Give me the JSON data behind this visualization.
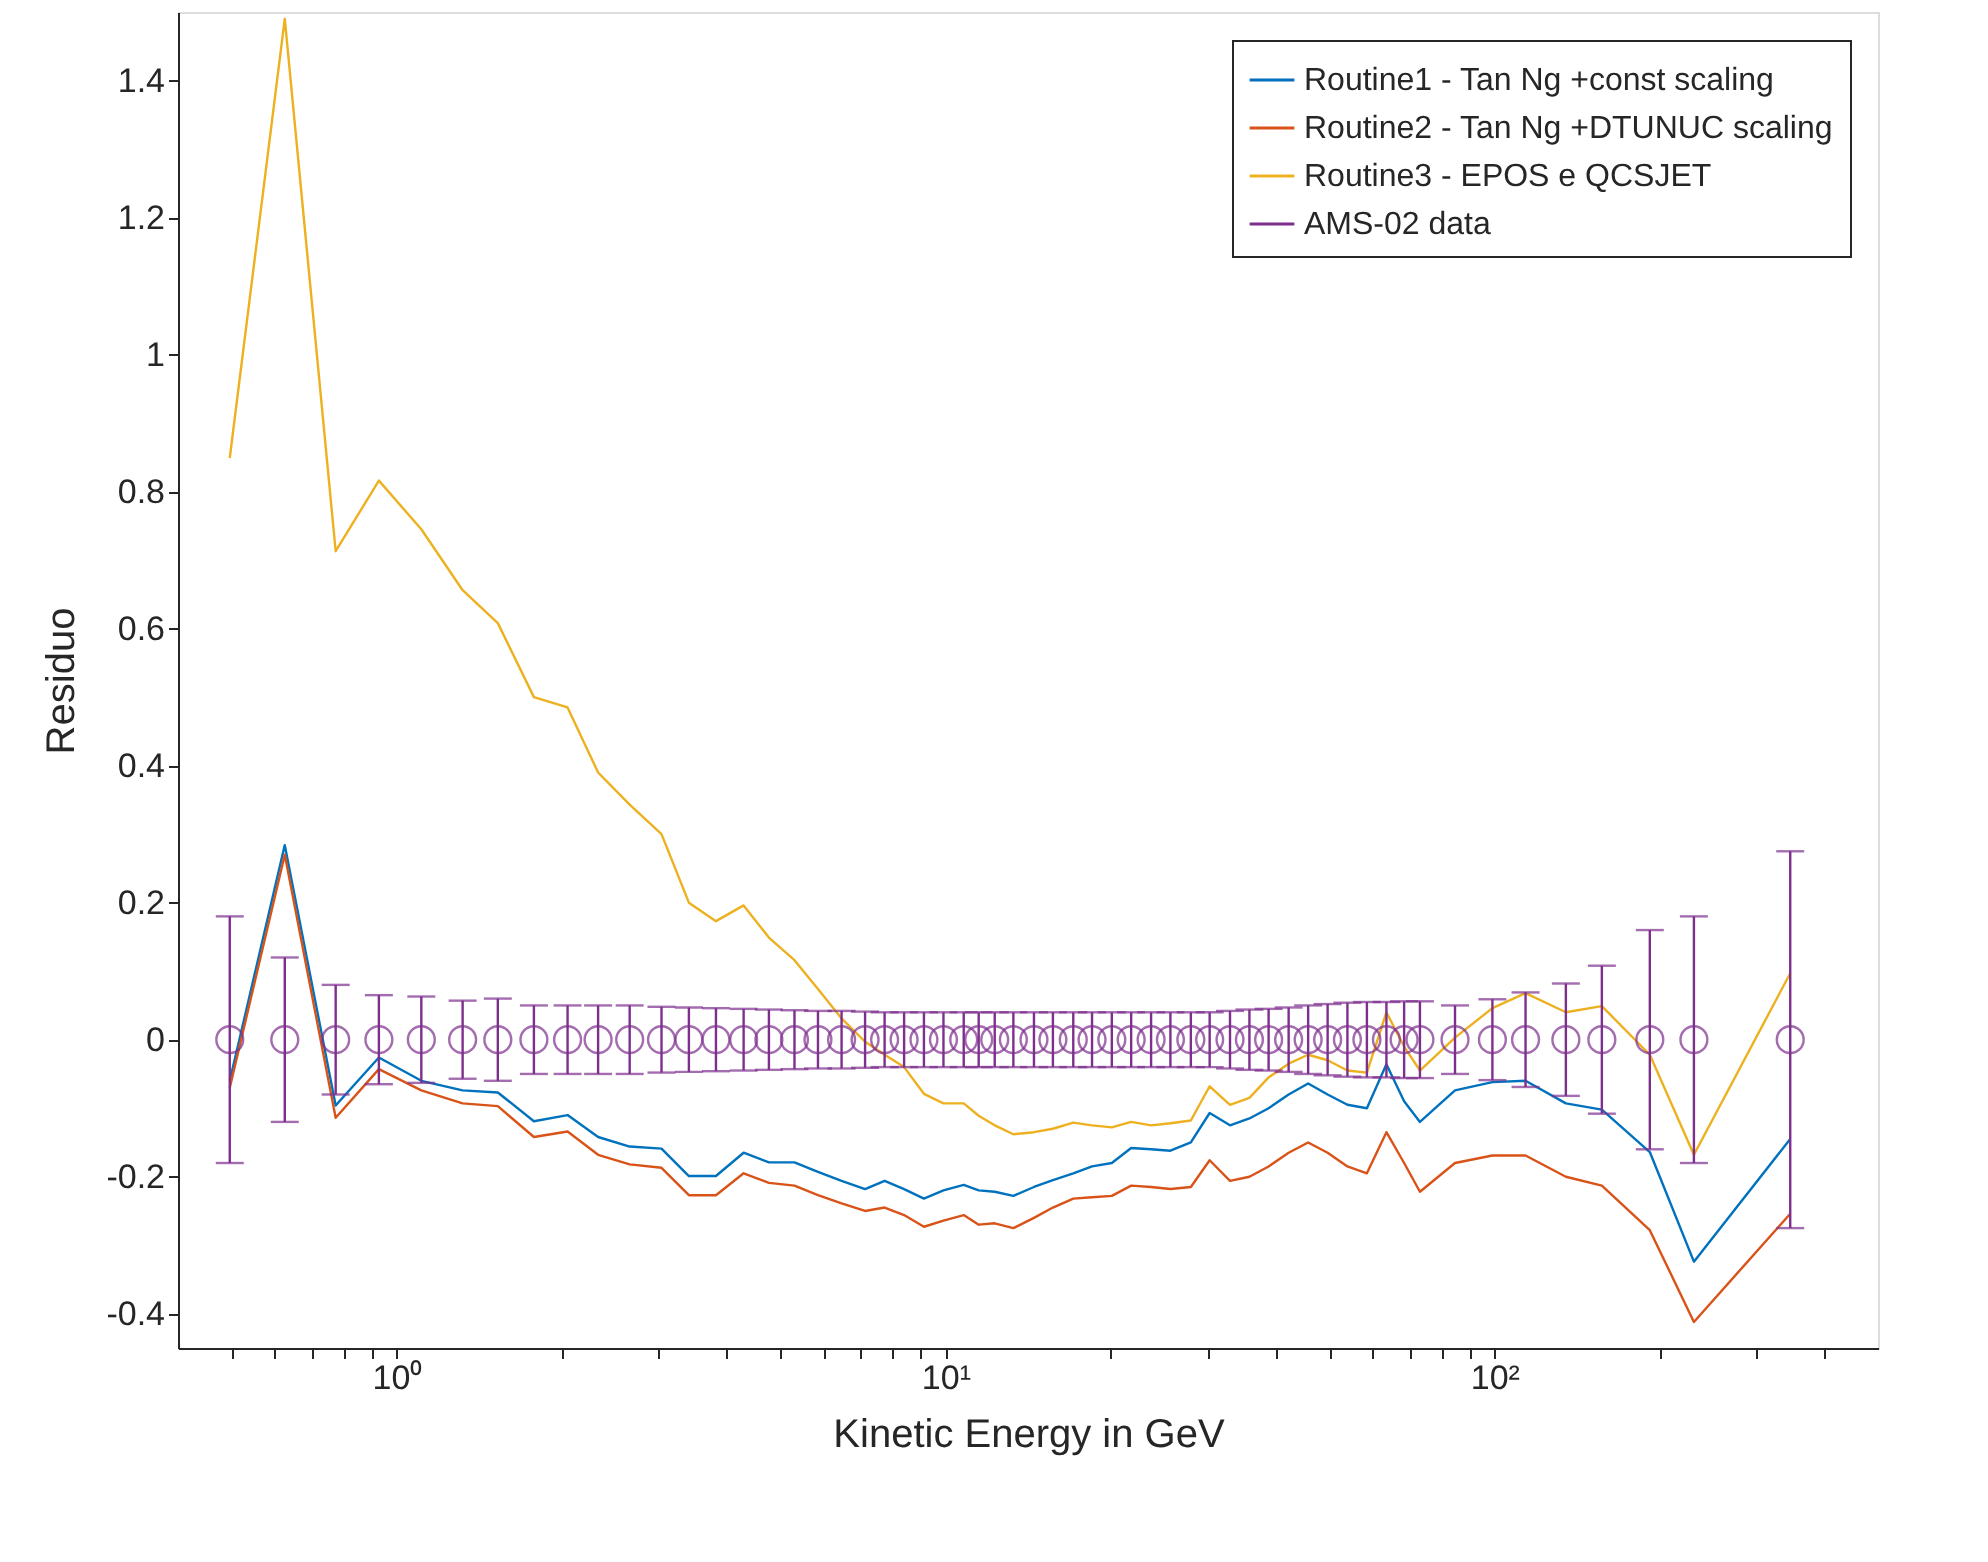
{
  "chart_data": {
    "type": "line",
    "xlabel": "Kinetic Energy in GeV",
    "ylabel": "Residuo",
    "log": "x",
    "grid": false,
    "legend": "top right",
    "xlim": [
      0.4,
      500
    ],
    "ylim": [
      -0.45,
      1.5
    ],
    "xticks": [
      {
        "value": 0.5,
        "label": null
      },
      {
        "value": 0.6,
        "label": null
      },
      {
        "value": 0.7,
        "label": null
      },
      {
        "value": 0.8,
        "label": null
      },
      {
        "value": 0.9,
        "label": null
      },
      {
        "value": 1,
        "label": "10⁰"
      },
      {
        "value": 2,
        "label": null
      },
      {
        "value": 3,
        "label": null
      },
      {
        "value": 4,
        "label": null
      },
      {
        "value": 5,
        "label": null
      },
      {
        "value": 6,
        "label": null
      },
      {
        "value": 7,
        "label": null
      },
      {
        "value": 8,
        "label": null
      },
      {
        "value": 9,
        "label": null
      },
      {
        "value": 10,
        "label": "10¹"
      },
      {
        "value": 20,
        "label": null
      },
      {
        "value": 30,
        "label": null
      },
      {
        "value": 40,
        "label": null
      },
      {
        "value": 50,
        "label": null
      },
      {
        "value": 60,
        "label": null
      },
      {
        "value": 70,
        "label": null
      },
      {
        "value": 80,
        "label": null
      },
      {
        "value": 90,
        "label": null
      },
      {
        "value": 100,
        "label": "10²"
      },
      {
        "value": 200,
        "label": null
      },
      {
        "value": 300,
        "label": null
      },
      {
        "value": 400,
        "label": null
      }
    ],
    "yticks": [
      -0.4,
      -0.2,
      0,
      0.2,
      0.4,
      0.6,
      0.8,
      1,
      1.2,
      1.4
    ],
    "x": [
      0.497,
      0.626,
      0.775,
      0.929,
      1.11,
      1.32,
      1.53,
      1.78,
      2.05,
      2.33,
      2.66,
      3.04,
      3.41,
      3.82,
      4.29,
      4.77,
      5.31,
      5.86,
      6.47,
      7.14,
      7.75,
      8.41,
      9.14,
      9.92,
      10.8,
      11.5,
      12.3,
      13.3,
      14.5,
      15.7,
      17.1,
      18.5,
      20.1,
      21.8,
      23.7,
      25.7,
      28.0,
      30.3,
      33.0,
      35.8,
      38.8,
      42.2,
      45.8,
      49.7,
      54.0,
      58.6,
      63.6,
      68.5,
      73.2,
      84.8,
      99.2,
      114,
      135,
      157,
      192,
      231,
      346
    ],
    "series": [
      {
        "name": "Routine1 - Tan Ng +const scaling",
        "color": "#0072bd",
        "values": [
          -0.06,
          0.284,
          -0.096,
          -0.026,
          -0.06,
          -0.074,
          -0.077,
          -0.119,
          -0.11,
          -0.142,
          -0.156,
          -0.159,
          -0.199,
          -0.199,
          -0.165,
          -0.179,
          -0.179,
          -0.193,
          -0.206,
          -0.218,
          -0.206,
          -0.218,
          -0.232,
          -0.22,
          -0.212,
          -0.22,
          -0.222,
          -0.228,
          -0.215,
          -0.205,
          -0.195,
          -0.185,
          -0.18,
          -0.158,
          -0.16,
          -0.162,
          -0.15,
          -0.107,
          -0.125,
          -0.115,
          -0.1,
          -0.08,
          -0.064,
          -0.08,
          -0.095,
          -0.1,
          -0.036,
          -0.09,
          -0.12,
          -0.074,
          -0.062,
          -0.06,
          -0.093,
          -0.102,
          -0.164,
          -0.324,
          -0.145
        ]
      },
      {
        "name": "Routine2 - Tan Ng +DTUNUC scaling",
        "color": "#d95319",
        "values": [
          -0.07,
          0.27,
          -0.114,
          -0.043,
          -0.074,
          -0.093,
          -0.097,
          -0.142,
          -0.134,
          -0.168,
          -0.182,
          -0.187,
          -0.227,
          -0.227,
          -0.195,
          -0.209,
          -0.213,
          -0.227,
          -0.239,
          -0.25,
          -0.245,
          -0.256,
          -0.273,
          -0.264,
          -0.256,
          -0.27,
          -0.268,
          -0.275,
          -0.26,
          -0.245,
          -0.232,
          -0.23,
          -0.228,
          -0.213,
          -0.215,
          -0.218,
          -0.215,
          -0.176,
          -0.206,
          -0.2,
          -0.185,
          -0.165,
          -0.15,
          -0.165,
          -0.185,
          -0.195,
          -0.135,
          -0.18,
          -0.222,
          -0.18,
          -0.169,
          -0.169,
          -0.2,
          -0.213,
          -0.278,
          -0.412,
          -0.254
        ]
      },
      {
        "name": "Routine3 - EPOS e QCSJET",
        "color": "#edb120",
        "values": [
          0.849,
          1.49,
          0.713,
          0.816,
          0.745,
          0.656,
          0.608,
          0.5,
          0.485,
          0.39,
          0.343,
          0.3,
          0.2,
          0.173,
          0.196,
          0.149,
          0.116,
          0.074,
          0.031,
          -0.003,
          -0.022,
          -0.04,
          -0.079,
          -0.093,
          -0.093,
          -0.111,
          -0.125,
          -0.138,
          -0.135,
          -0.13,
          -0.121,
          -0.125,
          -0.128,
          -0.12,
          -0.125,
          -0.122,
          -0.118,
          -0.068,
          -0.095,
          -0.085,
          -0.055,
          -0.035,
          -0.022,
          -0.03,
          -0.045,
          -0.048,
          0.04,
          -0.01,
          -0.045,
          0.003,
          0.046,
          0.068,
          0.04,
          0.049,
          -0.022,
          -0.168,
          0.097
        ]
      },
      {
        "name": "AMS-02 data",
        "type": "scatter",
        "marker": "circle",
        "color": "#7e2f8e",
        "values": [
          0,
          0,
          0,
          0,
          0,
          0,
          0,
          0,
          0,
          0,
          0,
          0,
          0,
          0,
          0,
          0,
          0,
          0,
          0,
          0,
          0,
          0,
          0,
          0,
          0,
          0,
          0,
          0,
          0,
          0,
          0,
          0,
          0,
          0,
          0,
          0,
          0,
          0,
          0,
          0,
          0,
          0,
          0,
          0,
          0,
          0,
          0,
          0,
          0,
          0,
          0,
          0,
          0,
          0,
          0,
          0,
          0
        ],
        "errors": [
          0.18,
          0.12,
          0.08,
          0.065,
          0.063,
          0.057,
          0.06,
          0.05,
          0.05,
          0.05,
          0.05,
          0.048,
          0.047,
          0.046,
          0.045,
          0.044,
          0.043,
          0.042,
          0.042,
          0.041,
          0.04,
          0.04,
          0.04,
          0.04,
          0.04,
          0.04,
          0.04,
          0.04,
          0.04,
          0.04,
          0.04,
          0.04,
          0.04,
          0.04,
          0.04,
          0.04,
          0.04,
          0.04,
          0.042,
          0.044,
          0.045,
          0.047,
          0.05,
          0.052,
          0.054,
          0.055,
          0.055,
          0.056,
          0.056,
          0.05,
          0.059,
          0.069,
          0.082,
          0.108,
          0.16,
          0.18,
          0.275
        ]
      }
    ]
  }
}
